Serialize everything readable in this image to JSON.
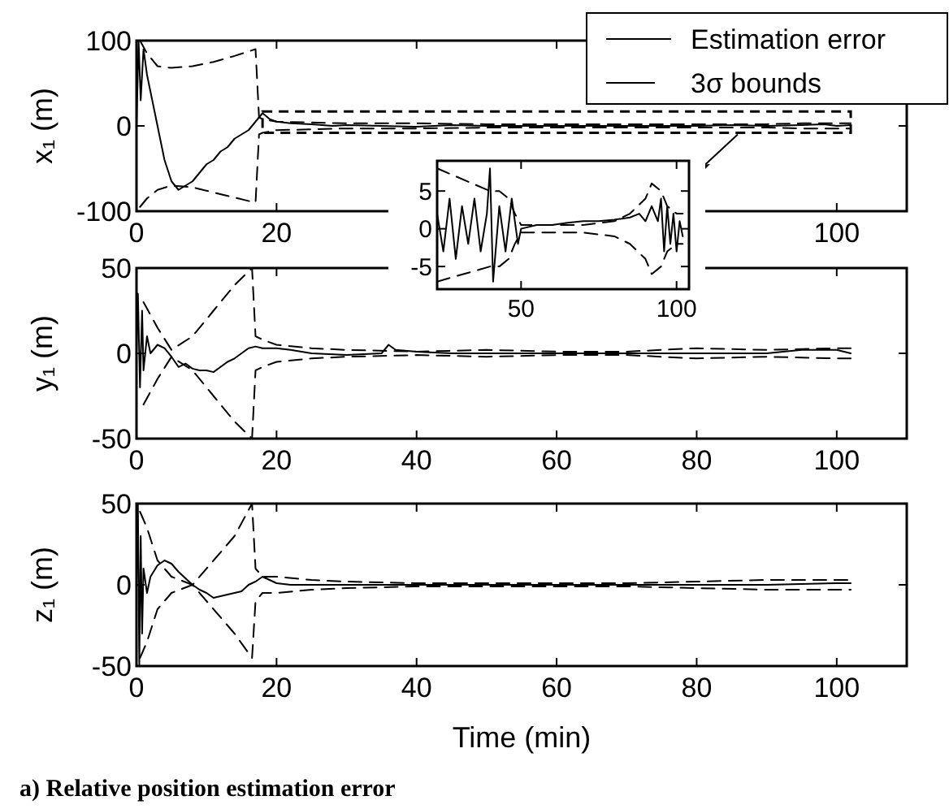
{
  "chart_data": [
    {
      "type": "line",
      "ylabel": "x₁ (m)",
      "xlim": [
        0,
        110
      ],
      "ylim": [
        -100,
        100
      ],
      "xticks": [
        0,
        20,
        {
          "value": 40,
          "label": null
        },
        {
          "value": 60,
          "label": null
        },
        {
          "value": 80,
          "label": null
        },
        100
      ],
      "yticks": [
        -100,
        0,
        100
      ],
      "legend": "top right",
      "series": [
        {
          "name": "Estimation error",
          "color": "#000000",
          "line_style": "solid",
          "x": [
            0,
            0.3,
            0.6,
            1,
            1.5,
            2,
            3,
            4,
            5,
            6,
            7,
            8,
            9,
            10,
            11,
            12,
            13,
            14,
            15,
            16,
            17,
            18,
            19,
            20,
            22,
            25,
            28,
            30,
            35,
            40,
            45,
            50,
            55,
            60,
            65,
            70,
            75,
            80,
            85,
            90,
            95,
            98,
            100,
            102
          ],
          "values": [
            0,
            100,
            30,
            90,
            60,
            40,
            0,
            -40,
            -65,
            -75,
            -70,
            -65,
            -55,
            -45,
            -40,
            -30,
            -25,
            -15,
            -10,
            -5,
            5,
            15,
            8,
            5,
            3,
            2,
            0,
            1,
            0,
            -1,
            1,
            0,
            0,
            0,
            0,
            0,
            0,
            0,
            1,
            0,
            1,
            2,
            0,
            1
          ]
        },
        {
          "name": "3σ bounds",
          "color": "#000000",
          "line_style": "dashed",
          "x": [
            0.5,
            1.5,
            3,
            5,
            8,
            11,
            14,
            17,
            17.5,
            18,
            20,
            25,
            30,
            40,
            50,
            60,
            70,
            80,
            90,
            95,
            100,
            102
          ],
          "values": [
            100,
            85,
            70,
            68,
            70,
            75,
            82,
            90,
            10,
            8,
            5,
            4,
            3,
            3,
            2,
            2,
            2,
            2,
            2,
            3,
            3,
            3
          ]
        },
        {
          "color": "#000000",
          "line_style": "dashed",
          "x": [
            0.5,
            1.5,
            3,
            5,
            8,
            11,
            14,
            17,
            17.5,
            18,
            20,
            25,
            30,
            40,
            50,
            60,
            70,
            80,
            90,
            95,
            100,
            102
          ],
          "values": [
            -95,
            -85,
            -75,
            -70,
            -72,
            -78,
            -84,
            -90,
            -10,
            -8,
            -5,
            -4,
            -3,
            -3,
            -2,
            -2,
            -2,
            -2,
            -2,
            -3,
            -3,
            -3
          ]
        }
      ]
    },
    {
      "type": "line",
      "xlim": [
        23,
        104
      ],
      "ylim": [
        -8,
        9
      ],
      "xticks": [
        50,
        100
      ],
      "yticks": [
        -5,
        0,
        5
      ],
      "series": [
        {
          "color": "#000000",
          "line_style": "solid",
          "x": [
            23,
            25,
            27,
            29,
            31,
            33,
            35,
            37,
            39,
            40,
            41,
            43,
            45,
            47,
            49,
            50,
            55,
            60,
            65,
            70,
            75,
            80,
            85,
            88,
            90,
            92,
            94,
            95,
            96,
            97,
            98,
            99,
            100,
            101,
            102
          ],
          "values": [
            2,
            -3,
            4,
            -4,
            3,
            -2,
            4,
            -3,
            2,
            8,
            -7,
            3,
            -3,
            4,
            -2,
            0,
            0.5,
            0.5,
            0.8,
            1,
            1,
            1.2,
            1.5,
            2,
            1,
            3,
            1,
            4,
            -3,
            3,
            -2,
            2,
            -3,
            1,
            -1
          ]
        },
        {
          "color": "#000000",
          "line_style": "dashed",
          "x": [
            23,
            40,
            43,
            46,
            48,
            50,
            60,
            70,
            80,
            85,
            90,
            92,
            95,
            97,
            100,
            102
          ],
          "values": [
            8,
            5,
            5,
            4,
            2,
            0.5,
            0.5,
            0.5,
            1,
            2,
            4,
            6,
            5,
            3,
            2,
            2
          ]
        },
        {
          "color": "#000000",
          "line_style": "dashed",
          "x": [
            23,
            40,
            43,
            46,
            48,
            50,
            60,
            70,
            80,
            85,
            90,
            92,
            95,
            97,
            100,
            102
          ],
          "values": [
            -7,
            -5,
            -5,
            -4,
            -2,
            -0.5,
            -0.5,
            -0.5,
            -1,
            -2,
            -4,
            -6,
            -5,
            -3,
            -2,
            -2
          ]
        }
      ]
    },
    {
      "type": "line",
      "ylabel": "y₁ (m)",
      "xlim": [
        0,
        110
      ],
      "ylim": [
        -50,
        50
      ],
      "xticks": [
        0,
        20,
        40,
        60,
        80,
        100
      ],
      "yticks": [
        -50,
        0,
        50
      ],
      "series": [
        {
          "color": "#000000",
          "line_style": "solid",
          "x": [
            0,
            0.2,
            0.5,
            0.8,
            1,
            1.5,
            2,
            3,
            4,
            5,
            6,
            7,
            8,
            9,
            10,
            11,
            12,
            13,
            14,
            15,
            16,
            17,
            18,
            20,
            22,
            25,
            30,
            35,
            36,
            37,
            40,
            45,
            50,
            60,
            70,
            80,
            90,
            95,
            100,
            102
          ],
          "values": [
            0,
            35,
            -20,
            25,
            -10,
            10,
            0,
            5,
            3,
            -2,
            -8,
            -6,
            -9,
            -10,
            -10,
            -11,
            -8,
            -5,
            -3,
            0,
            3,
            4,
            3,
            3,
            2,
            0,
            -1,
            0,
            5,
            2,
            1,
            0,
            0,
            0,
            0,
            0,
            0,
            2,
            2,
            0
          ]
        },
        {
          "color": "#000000",
          "line_style": "dashed",
          "x": [
            1,
            3,
            5,
            8,
            11,
            14,
            16,
            16.5,
            17,
            18,
            20,
            25,
            30,
            40,
            50,
            60,
            70,
            80,
            90,
            100,
            102
          ],
          "values": [
            30,
            15,
            2,
            10,
            25,
            40,
            48,
            50,
            10,
            8,
            5,
            3,
            2,
            1,
            2,
            1,
            1,
            3,
            2,
            3,
            3
          ]
        },
        {
          "color": "#000000",
          "line_style": "dashed",
          "x": [
            1,
            3,
            5,
            8,
            11,
            14,
            16,
            16.5,
            17,
            18,
            20,
            25,
            30,
            40,
            50,
            60,
            70,
            80,
            90,
            100,
            102
          ],
          "values": [
            -30,
            -15,
            -2,
            -10,
            -25,
            -40,
            -48,
            -50,
            -10,
            -8,
            -5,
            -3,
            -2,
            -1,
            -2,
            -1,
            -1,
            -3,
            -2,
            -3,
            -3
          ]
        }
      ]
    },
    {
      "type": "line",
      "ylabel": "z₁ (m)",
      "xlabel": "Time (min)",
      "xlim": [
        0,
        110
      ],
      "ylim": [
        -50,
        50
      ],
      "xticks": [
        0,
        20,
        40,
        60,
        80,
        100
      ],
      "yticks": [
        -50,
        0,
        50
      ],
      "annotations": [
        "a) Relative position estimation error"
      ],
      "series": [
        {
          "color": "#000000",
          "line_style": "solid",
          "x": [
            0,
            0.2,
            0.4,
            0.6,
            0.8,
            1,
            1.5,
            2,
            3,
            4,
            5,
            6,
            7,
            8,
            9,
            10,
            11,
            12,
            13,
            14,
            15,
            16,
            17,
            18,
            20,
            22,
            25,
            30,
            40,
            50,
            60,
            70,
            80,
            90,
            100,
            102
          ],
          "values": [
            0,
            50,
            -50,
            30,
            -30,
            10,
            -5,
            5,
            12,
            15,
            13,
            8,
            4,
            0,
            -3,
            -5,
            -8,
            -7,
            -6,
            -5,
            -4,
            0,
            2,
            5,
            1,
            0,
            0,
            0,
            0,
            0,
            0,
            0,
            0,
            0,
            1,
            1
          ]
        },
        {
          "color": "#000000",
          "line_style": "dashed",
          "x": [
            0.5,
            1.5,
            3,
            5,
            8,
            11,
            14,
            16.5,
            17,
            18,
            20,
            25,
            30,
            40,
            50,
            60,
            70,
            80,
            90,
            100,
            102
          ],
          "values": [
            45,
            35,
            15,
            5,
            0,
            15,
            30,
            50,
            10,
            5,
            5,
            3,
            2,
            1,
            1,
            1,
            1,
            2,
            3,
            3,
            3
          ]
        },
        {
          "color": "#000000",
          "line_style": "dashed",
          "x": [
            0.5,
            1.5,
            3,
            5,
            8,
            11,
            14,
            16.5,
            17,
            18,
            20,
            25,
            30,
            40,
            50,
            60,
            70,
            80,
            90,
            100,
            102
          ],
          "values": [
            -45,
            -35,
            -15,
            -5,
            0,
            -15,
            -30,
            -45,
            -10,
            -5,
            -5,
            -3,
            -2,
            -1,
            -1,
            -1,
            -1,
            -2,
            -3,
            -3,
            -3
          ]
        }
      ]
    }
  ]
}
